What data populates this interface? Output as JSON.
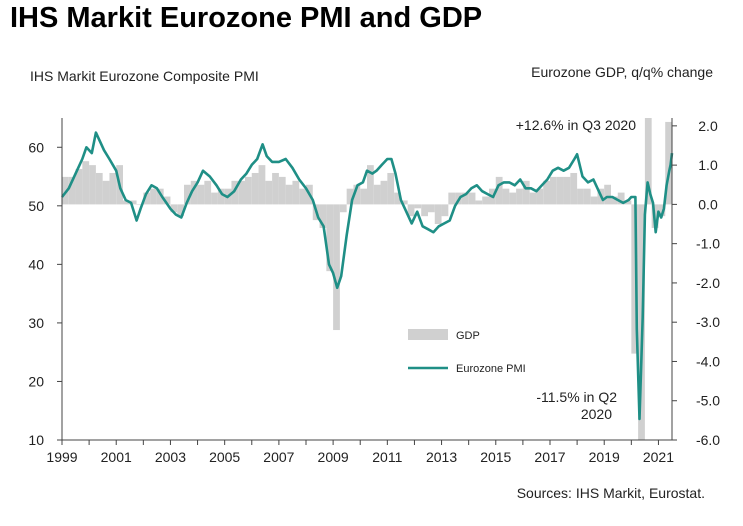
{
  "title": "IHS Markit Eurozone PMI and GDP",
  "source": "Sources: IHS Markit, Eurostat.",
  "colors": {
    "pmi_line": "#1f8f86",
    "gdp_bar": "#d0d0d0",
    "axis": "#444444"
  },
  "chart_data": {
    "type": "bar+line",
    "title": "IHS Markit Eurozone PMI and GDP",
    "left_axis": {
      "label": "IHS Markit Eurozone Composite PMI",
      "range": [
        10,
        65
      ],
      "ticks": [
        10,
        20,
        30,
        40,
        50,
        60
      ],
      "tick_labels": [
        "10",
        "20",
        "30",
        "40",
        "50",
        "60"
      ]
    },
    "right_axis": {
      "label": "Eurozone GDP, q/q% change",
      "range": [
        -6.0,
        2.2
      ],
      "ticks": [
        -6.0,
        -5.0,
        -4.0,
        -3.0,
        -2.0,
        -1.0,
        0.0,
        1.0,
        2.0
      ],
      "tick_labels": [
        "-6.0",
        "-5.0",
        "-4.0",
        "-3.0",
        "-2.0",
        "-1.0",
        "0.0",
        "1.0",
        "2.0"
      ]
    },
    "x_axis": {
      "range": [
        1999,
        2021.5
      ],
      "tick_labels": [
        "1999",
        "2001",
        "2003",
        "2005",
        "2007",
        "2009",
        "2011",
        "2013",
        "2015",
        "2017",
        "2019",
        "2021"
      ]
    },
    "legend": {
      "placement": "bottom-right",
      "entries": [
        "GDP",
        "Eurozone PMI"
      ]
    },
    "annotations": {
      "q3_2020": "+12.6% in Q3 2020",
      "q2_2020_line1": "-11.5% in Q2",
      "q2_2020_line2": "2020"
    },
    "series": [
      {
        "name": "GDP",
        "axis": "right",
        "kind": "bar",
        "points": [
          [
            1999.0,
            0.7
          ],
          [
            1999.25,
            0.7
          ],
          [
            1999.5,
            0.9
          ],
          [
            1999.75,
            1.1
          ],
          [
            2000.0,
            1.0
          ],
          [
            2000.25,
            0.8
          ],
          [
            2000.5,
            0.6
          ],
          [
            2000.75,
            0.8
          ],
          [
            2001.0,
            1.0
          ],
          [
            2001.25,
            0.1
          ],
          [
            2001.5,
            0.1
          ],
          [
            2001.75,
            0.0
          ],
          [
            2002.0,
            0.3
          ],
          [
            2002.25,
            0.4
          ],
          [
            2002.5,
            0.4
          ],
          [
            2002.75,
            0.2
          ],
          [
            2003.0,
            -0.2
          ],
          [
            2003.25,
            -0.3
          ],
          [
            2003.5,
            0.5
          ],
          [
            2003.75,
            0.6
          ],
          [
            2004.0,
            0.5
          ],
          [
            2004.25,
            0.6
          ],
          [
            2004.5,
            0.3
          ],
          [
            2004.75,
            0.4
          ],
          [
            2005.0,
            0.4
          ],
          [
            2005.25,
            0.6
          ],
          [
            2005.5,
            0.6
          ],
          [
            2005.75,
            0.7
          ],
          [
            2006.0,
            0.8
          ],
          [
            2006.25,
            1.0
          ],
          [
            2006.5,
            0.6
          ],
          [
            2006.75,
            0.8
          ],
          [
            2007.0,
            0.7
          ],
          [
            2007.25,
            0.5
          ],
          [
            2007.5,
            0.6
          ],
          [
            2007.75,
            0.4
          ],
          [
            2008.0,
            0.5
          ],
          [
            2008.25,
            -0.4
          ],
          [
            2008.5,
            -0.6
          ],
          [
            2008.75,
            -1.7
          ],
          [
            2009.0,
            -3.2
          ],
          [
            2009.25,
            -0.2
          ],
          [
            2009.5,
            0.4
          ],
          [
            2009.75,
            0.5
          ],
          [
            2010.0,
            0.4
          ],
          [
            2010.25,
            1.0
          ],
          [
            2010.5,
            0.5
          ],
          [
            2010.75,
            0.6
          ],
          [
            2011.0,
            0.8
          ],
          [
            2011.25,
            0.3
          ],
          [
            2011.5,
            0.1
          ],
          [
            2011.75,
            -0.3
          ],
          [
            2012.0,
            -0.1
          ],
          [
            2012.25,
            -0.3
          ],
          [
            2012.5,
            -0.2
          ],
          [
            2012.75,
            -0.5
          ],
          [
            2013.0,
            -0.3
          ],
          [
            2013.25,
            0.3
          ],
          [
            2013.5,
            0.3
          ],
          [
            2013.75,
            0.3
          ],
          [
            2014.0,
            0.3
          ],
          [
            2014.25,
            0.1
          ],
          [
            2014.5,
            0.2
          ],
          [
            2014.75,
            0.4
          ],
          [
            2015.0,
            0.7
          ],
          [
            2015.25,
            0.4
          ],
          [
            2015.5,
            0.3
          ],
          [
            2015.75,
            0.4
          ],
          [
            2016.0,
            0.6
          ],
          [
            2016.25,
            0.3
          ],
          [
            2016.5,
            0.4
          ],
          [
            2016.75,
            0.6
          ],
          [
            2017.0,
            0.7
          ],
          [
            2017.25,
            0.7
          ],
          [
            2017.5,
            0.7
          ],
          [
            2017.75,
            0.8
          ],
          [
            2018.0,
            0.4
          ],
          [
            2018.25,
            0.4
          ],
          [
            2018.5,
            0.2
          ],
          [
            2018.75,
            0.4
          ],
          [
            2019.0,
            0.5
          ],
          [
            2019.25,
            0.2
          ],
          [
            2019.5,
            0.3
          ],
          [
            2019.75,
            0.1
          ],
          [
            2020.0,
            -3.8
          ],
          [
            2020.25,
            -6.0
          ],
          [
            2020.5,
            2.2
          ],
          [
            2020.75,
            -0.6
          ],
          [
            2021.0,
            -0.3
          ],
          [
            2021.25,
            2.1
          ]
        ]
      },
      {
        "name": "Eurozone PMI",
        "axis": "left",
        "kind": "line",
        "points": [
          [
            1999.0,
            51.5
          ],
          [
            1999.25,
            53.0
          ],
          [
            1999.5,
            55.5
          ],
          [
            1999.75,
            58.0
          ],
          [
            1999.9,
            60.0
          ],
          [
            2000.1,
            59.0
          ],
          [
            2000.25,
            62.5
          ],
          [
            2000.4,
            61.0
          ],
          [
            2000.55,
            59.5
          ],
          [
            2000.75,
            58.0
          ],
          [
            2001.0,
            56.0
          ],
          [
            2001.15,
            53.0
          ],
          [
            2001.35,
            51.0
          ],
          [
            2001.55,
            50.5
          ],
          [
            2001.75,
            47.5
          ],
          [
            2001.9,
            49.5
          ],
          [
            2002.1,
            52.0
          ],
          [
            2002.3,
            53.5
          ],
          [
            2002.5,
            53.0
          ],
          [
            2002.7,
            51.5
          ],
          [
            2002.85,
            50.5
          ],
          [
            2003.0,
            49.5
          ],
          [
            2003.2,
            48.5
          ],
          [
            2003.4,
            48.0
          ],
          [
            2003.6,
            50.5
          ],
          [
            2003.8,
            52.5
          ],
          [
            2004.0,
            54.0
          ],
          [
            2004.2,
            56.0
          ],
          [
            2004.45,
            55.0
          ],
          [
            2004.7,
            53.5
          ],
          [
            2004.9,
            52.0
          ],
          [
            2005.1,
            51.5
          ],
          [
            2005.35,
            52.5
          ],
          [
            2005.6,
            54.5
          ],
          [
            2005.8,
            55.5
          ],
          [
            2006.0,
            57.0
          ],
          [
            2006.2,
            58.0
          ],
          [
            2006.4,
            60.5
          ],
          [
            2006.55,
            58.5
          ],
          [
            2006.75,
            57.5
          ],
          [
            2007.0,
            57.5
          ],
          [
            2007.25,
            58.0
          ],
          [
            2007.5,
            56.5
          ],
          [
            2007.75,
            54.5
          ],
          [
            2008.0,
            53.0
          ],
          [
            2008.25,
            51.0
          ],
          [
            2008.45,
            48.0
          ],
          [
            2008.65,
            46.5
          ],
          [
            2008.85,
            40.0
          ],
          [
            2009.0,
            38.5
          ],
          [
            2009.15,
            36.0
          ],
          [
            2009.3,
            38.0
          ],
          [
            2009.5,
            45.0
          ],
          [
            2009.7,
            51.0
          ],
          [
            2009.9,
            53.5
          ],
          [
            2010.1,
            54.0
          ],
          [
            2010.25,
            56.0
          ],
          [
            2010.45,
            55.5
          ],
          [
            2010.6,
            56.0
          ],
          [
            2010.8,
            57.0
          ],
          [
            2011.0,
            58.0
          ],
          [
            2011.15,
            58.0
          ],
          [
            2011.3,
            55.5
          ],
          [
            2011.5,
            51.0
          ],
          [
            2011.7,
            49.0
          ],
          [
            2011.9,
            47.0
          ],
          [
            2012.1,
            49.0
          ],
          [
            2012.3,
            46.5
          ],
          [
            2012.5,
            46.0
          ],
          [
            2012.7,
            45.5
          ],
          [
            2012.9,
            46.5
          ],
          [
            2013.1,
            47.0
          ],
          [
            2013.3,
            47.5
          ],
          [
            2013.5,
            50.0
          ],
          [
            2013.7,
            51.5
          ],
          [
            2013.9,
            52.0
          ],
          [
            2014.1,
            53.0
          ],
          [
            2014.3,
            53.5
          ],
          [
            2014.5,
            52.5
          ],
          [
            2014.7,
            52.0
          ],
          [
            2014.9,
            51.5
          ],
          [
            2015.1,
            53.5
          ],
          [
            2015.3,
            54.0
          ],
          [
            2015.5,
            54.0
          ],
          [
            2015.7,
            53.5
          ],
          [
            2015.9,
            54.5
          ],
          [
            2016.1,
            53.0
          ],
          [
            2016.3,
            53.0
          ],
          [
            2016.5,
            52.5
          ],
          [
            2016.7,
            53.5
          ],
          [
            2016.9,
            54.5
          ],
          [
            2017.1,
            56.0
          ],
          [
            2017.3,
            56.5
          ],
          [
            2017.5,
            56.0
          ],
          [
            2017.7,
            56.5
          ],
          [
            2017.9,
            58.0
          ],
          [
            2018.0,
            58.8
          ],
          [
            2018.2,
            55.0
          ],
          [
            2018.4,
            54.0
          ],
          [
            2018.6,
            54.5
          ],
          [
            2018.8,
            52.5
          ],
          [
            2018.95,
            51.0
          ],
          [
            2019.1,
            51.5
          ],
          [
            2019.3,
            51.5
          ],
          [
            2019.5,
            51.0
          ],
          [
            2019.7,
            50.5
          ],
          [
            2019.9,
            51.0
          ],
          [
            2020.0,
            51.5
          ],
          [
            2020.15,
            51.5
          ],
          [
            2020.2,
            29.0
          ],
          [
            2020.3,
            13.6
          ],
          [
            2020.42,
            31.0
          ],
          [
            2020.5,
            48.5
          ],
          [
            2020.6,
            54.0
          ],
          [
            2020.7,
            52.0
          ],
          [
            2020.8,
            50.5
          ],
          [
            2020.9,
            45.5
          ],
          [
            2021.0,
            49.0
          ],
          [
            2021.1,
            48.0
          ],
          [
            2021.2,
            49.5
          ],
          [
            2021.3,
            53.5
          ],
          [
            2021.4,
            56.0
          ],
          [
            2021.45,
            57.0
          ],
          [
            2021.5,
            59.0
          ]
        ]
      }
    ]
  }
}
